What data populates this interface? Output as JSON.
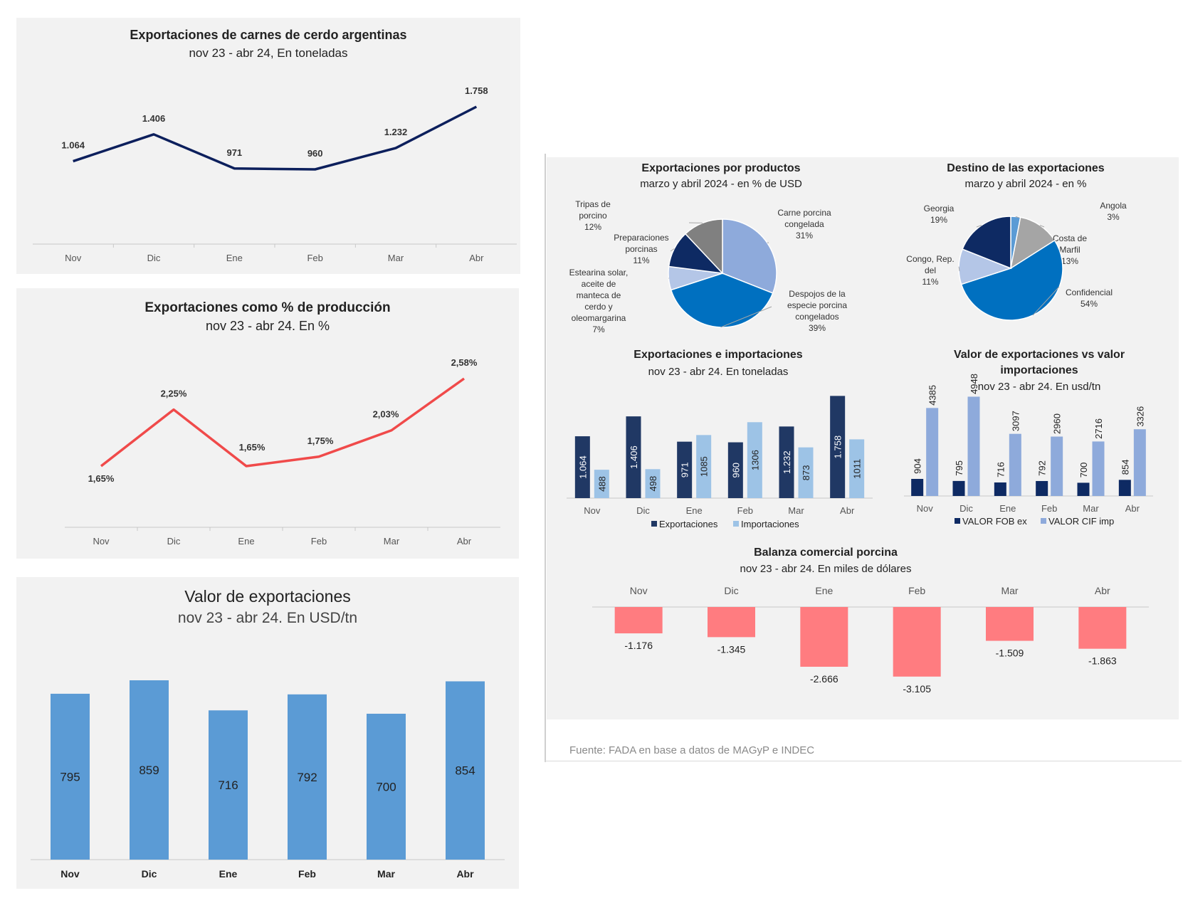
{
  "chart_data": [
    {
      "id": "exp_tn",
      "type": "line",
      "title": "Exportaciones de carnes de cerdo argentinas",
      "subtitle": "nov 23 - abr 24, En toneladas",
      "categories": [
        "Nov",
        "Dic",
        "Ene",
        "Feb",
        "Mar",
        "Abr"
      ],
      "values": [
        1064,
        1406,
        971,
        960,
        1232,
        1758
      ],
      "labels": [
        "1.064",
        "1.406",
        "971",
        "960",
        "1.232",
        "1.758"
      ],
      "color": "#0c1f5c"
    },
    {
      "id": "exp_pct",
      "type": "line",
      "title": "Exportaciones como % de producción",
      "subtitle": "nov  23 - abr 24. En %",
      "categories": [
        "Nov",
        "Dic",
        "Ene",
        "Feb",
        "Mar",
        "Abr"
      ],
      "values": [
        1.65,
        2.25,
        1.65,
        1.75,
        2.03,
        2.58
      ],
      "labels": [
        "1,65%",
        "2,25%",
        "1,65%",
        "1,75%",
        "2,03%",
        "2,58%"
      ],
      "color": "#f04a4a"
    },
    {
      "id": "exp_value",
      "type": "bar",
      "title": "Valor de exportaciones",
      "subtitle": "nov 23 - abr 24. En USD/tn",
      "categories": [
        "Nov",
        "Dic",
        "Ene",
        "Feb",
        "Mar",
        "Abr"
      ],
      "values": [
        795,
        859,
        716,
        792,
        700,
        854
      ],
      "labels": [
        "795",
        "859",
        "716",
        "792",
        "700",
        "854"
      ],
      "color": "#5b9bd5"
    },
    {
      "id": "by_product",
      "type": "pie",
      "title": "Exportaciones por productos",
      "subtitle": "marzo y abril 2024 - en % de USD",
      "slices": [
        {
          "label": "Carne porcina congelada",
          "lines": [
            "Carne porcina",
            "congelada",
            "31%"
          ],
          "value": 31,
          "color": "#8eaadb"
        },
        {
          "label": "Despojos de la especie porcina congelados",
          "lines": [
            "Despojos de la",
            "especie porcina",
            "congelados",
            "39%"
          ],
          "value": 39,
          "color": "#0070c0"
        },
        {
          "label": "Estearina solar, aceite de manteca de cerdo y oleomargarina",
          "lines": [
            "Estearina solar,",
            "aceite de",
            "manteca de",
            "cerdo y",
            "oleomargarina",
            "7%"
          ],
          "value": 7,
          "color": "#b4c6e7"
        },
        {
          "label": "Preparaciones porcinas",
          "lines": [
            "Preparaciones",
            "porcinas",
            "11%"
          ],
          "value": 11,
          "color": "#0e2a63"
        },
        {
          "label": "Tripas de porcino",
          "lines": [
            "Tripas de",
            "porcino",
            "12%"
          ],
          "value": 12,
          "color": "#808080"
        }
      ]
    },
    {
      "id": "destinations",
      "type": "pie",
      "title": "Destino de las exportaciones",
      "subtitle": "marzo  y abril 2024 - en %",
      "slices": [
        {
          "label": "Angola",
          "lines": [
            "Angola",
            "3%"
          ],
          "value": 3,
          "color": "#5b9bd5"
        },
        {
          "label": "Costa de Marfil",
          "lines": [
            "Costa de",
            "Marfil",
            "13%"
          ],
          "value": 13,
          "color": "#a5a5a5"
        },
        {
          "label": "Confidencial",
          "lines": [
            "Confidencial",
            "54%"
          ],
          "value": 54,
          "color": "#0070c0"
        },
        {
          "label": "Congo, Rep. del",
          "lines": [
            "Congo, Rep.",
            "del",
            "11%"
          ],
          "value": 11,
          "color": "#b4c6e7"
        },
        {
          "label": "Georgia",
          "lines": [
            "Georgia",
            "19%"
          ],
          "value": 19,
          "color": "#0e2a63"
        }
      ]
    },
    {
      "id": "exp_imp_tn",
      "type": "bar",
      "title": "Exportaciones e importaciones",
      "subtitle": "nov 23 - abr 24. En toneladas",
      "categories": [
        "Nov",
        "Dic",
        "Ene",
        "Feb",
        "Mar",
        "Abr"
      ],
      "series": [
        {
          "name": "Exportaciones",
          "values": [
            1064,
            1406,
            971,
            960,
            1232,
            1758
          ],
          "labels": [
            "1.064",
            "1.406",
            "971",
            "960",
            "1.232",
            "1.758"
          ],
          "color": "#203864"
        },
        {
          "name": "Importaciones",
          "values": [
            488,
            498,
            1085,
            1306,
            873,
            1011
          ],
          "labels": [
            "488",
            "498",
            "1085",
            "1306",
            "873",
            "1011"
          ],
          "color": "#9dc3e6"
        }
      ]
    },
    {
      "id": "value_exp_imp",
      "type": "bar",
      "title": "Valor de exportaciones vs valor importaciones",
      "subtitle": "nov 23 - abr 24. En usd/tn",
      "categories": [
        "Nov",
        "Dic",
        "Ene",
        "Feb",
        "Mar",
        "Abr"
      ],
      "series": [
        {
          "name": "VALOR FOB ex",
          "values": [
            904,
            795,
            716,
            792,
            700,
            854
          ],
          "labels": [
            "904",
            "795",
            "716",
            "792",
            "700",
            "854"
          ],
          "color": "#0e2a63"
        },
        {
          "name": "VALOR CIF imp",
          "values": [
            4385,
            4948,
            3097,
            2960,
            2716,
            3326
          ],
          "labels": [
            "4385",
            "4948",
            "3097",
            "2960",
            "2716",
            "3326"
          ],
          "color": "#8eaadb"
        }
      ]
    },
    {
      "id": "trade_balance",
      "type": "bar",
      "title": "Balanza comercial porcina",
      "subtitle": "nov 23 - abr 24. En miles de dólares",
      "categories": [
        "Nov",
        "Dic",
        "Ene",
        "Feb",
        "Mar",
        "Abr"
      ],
      "values": [
        -1176,
        -1345,
        -2666,
        -3105,
        -1509,
        -1863
      ],
      "labels": [
        "-1.176",
        "-1.345",
        "-2.666",
        "-3.105",
        "-1.509",
        "-1.863"
      ],
      "color": "#ff7c80"
    }
  ],
  "source_note": "Fuente: FADA en base a datos de MAGyP e INDEC"
}
